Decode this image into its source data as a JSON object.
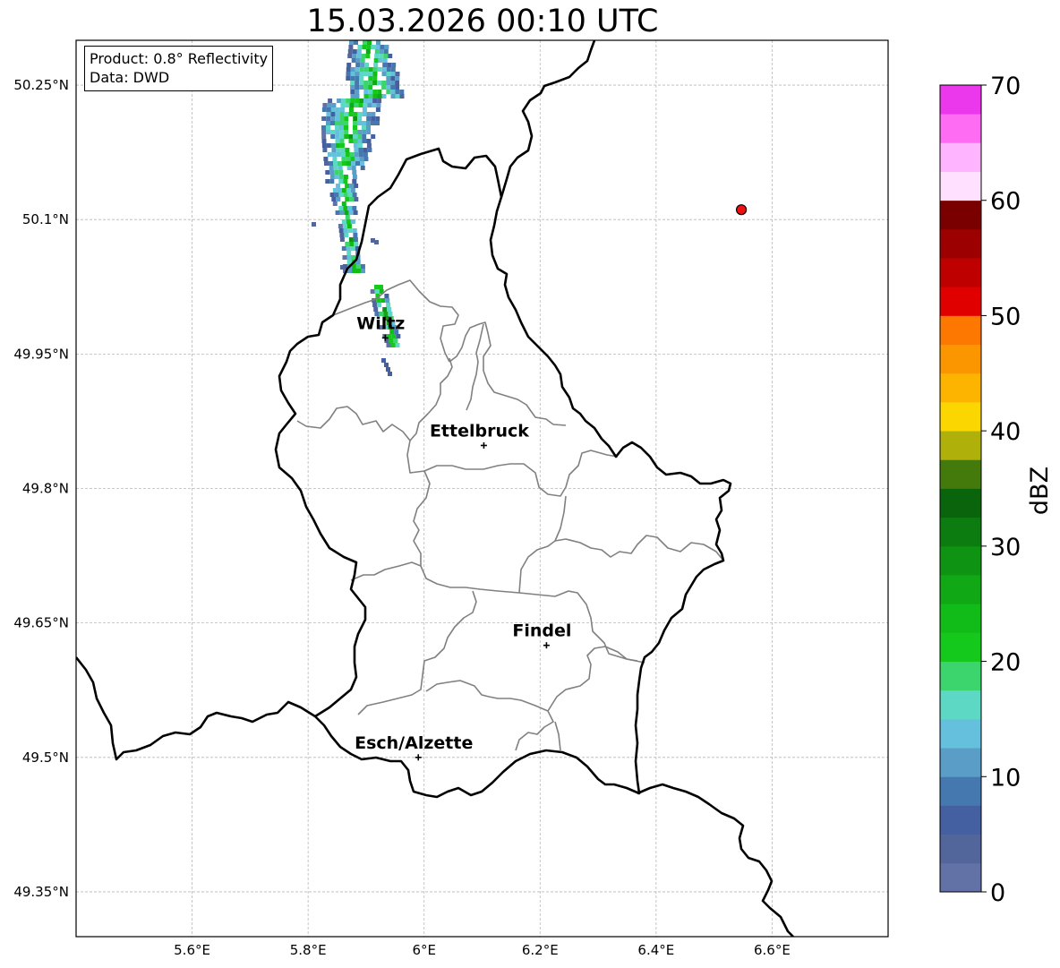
{
  "title": "15.03.2026 00:10 UTC",
  "info_box": {
    "line1": "Product: 0.8° Reflectivity",
    "line2": "Data: DWD"
  },
  "axes": {
    "x_ticks": [
      "5.6°E",
      "5.8°E",
      "6°E",
      "6.2°E",
      "6.4°E",
      "6.6°E"
    ],
    "x_values": [
      5.6,
      5.8,
      6.0,
      6.2,
      6.4,
      6.6
    ],
    "y_ticks": [
      "50.25°N",
      "50.1°N",
      "49.95°N",
      "49.8°N",
      "49.65°N",
      "49.5°N",
      "49.35°N"
    ],
    "y_values": [
      50.25,
      50.1,
      49.95,
      49.8,
      49.65,
      49.5,
      49.35
    ],
    "lon_range": [
      5.4,
      6.8
    ],
    "lat_range": [
      49.3,
      50.3
    ],
    "grid": true
  },
  "cities": [
    {
      "name": "Wiltz",
      "lon": 5.933,
      "lat": 49.968
    },
    {
      "name": "Ettelbruck",
      "lon": 6.103,
      "lat": 49.848
    },
    {
      "name": "Findel",
      "lon": 6.211,
      "lat": 49.625
    },
    {
      "name": "Esch/Alzette",
      "lon": 5.99,
      "lat": 49.5
    }
  ],
  "radar_marker": {
    "lon": 6.547,
    "lat": 50.111,
    "color": "#ee1111"
  },
  "colorbar": {
    "label": "dBZ",
    "ticks": [
      "0",
      "10",
      "20",
      "30",
      "40",
      "50",
      "60",
      "70"
    ],
    "min": 0,
    "max": 70,
    "step": 2.5,
    "colors": [
      "#6272a6",
      "#52669c",
      "#4460a0",
      "#4678b0",
      "#5a9ec8",
      "#64c0dc",
      "#5cd8c4",
      "#3cd46c",
      "#14c81c",
      "#12bc18",
      "#10a814",
      "#0e9412",
      "#0c7c10",
      "#0a640c",
      "#447a0c",
      "#b0b00a",
      "#fcd600",
      "#fcb400",
      "#fc9600",
      "#fc7800",
      "#e00000",
      "#be0000",
      "#9c0000",
      "#7a0000",
      "#ffe0ff",
      "#ffb4ff",
      "#ff6cf4",
      "#ec38ec"
    ]
  }
}
